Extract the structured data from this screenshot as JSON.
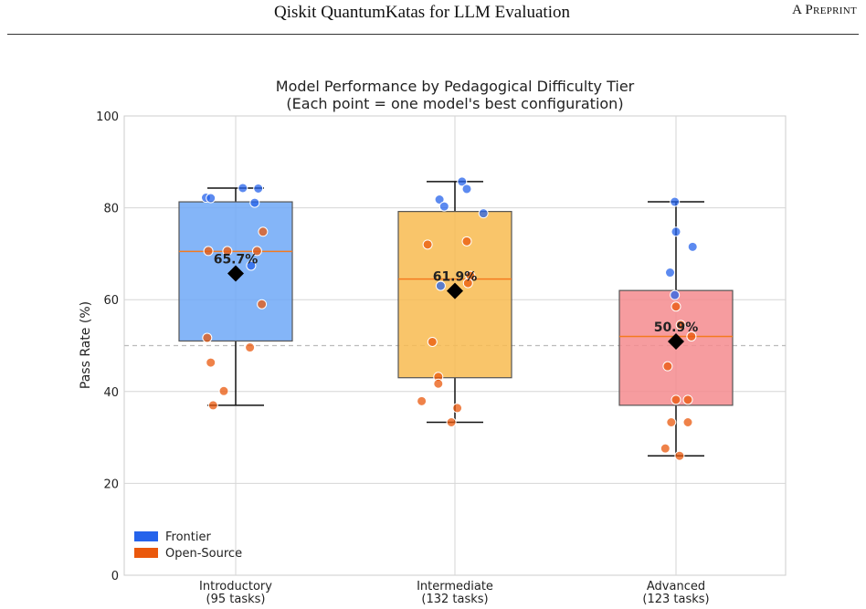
{
  "header": {
    "title": "Qiskit QuantumKatas for LLM Evaluation",
    "tag": "A Preprint"
  },
  "chart_data": {
    "type": "box",
    "title": "Model Performance by Pedagogical Difficulty Tier",
    "subtitle": "(Each point = one model's best configuration)",
    "xlabel": "",
    "ylabel": "Pass Rate (%)",
    "ylim": [
      0,
      100
    ],
    "yticks": [
      0,
      20,
      40,
      60,
      80,
      100
    ],
    "grid": true,
    "reference_line": 50,
    "legend_position": "bottom-left",
    "legend": [
      {
        "label": "Frontier",
        "color": "#2563eb"
      },
      {
        "label": "Open-Source",
        "color": "#ea580c"
      }
    ],
    "groups": [
      {
        "label": "Introductory",
        "sublabel": "(95 tasks)",
        "color": "#6fa8f7",
        "q1": 51,
        "median": 70.5,
        "q3": 81.3,
        "whisker_low": 37,
        "whisker_high": 84.3,
        "mean": 65.7,
        "mean_label": "65.7%",
        "points": [
          {
            "x": -0.25,
            "y": 82.2,
            "group": "Frontier"
          },
          {
            "x": -0.21,
            "y": 82.1,
            "group": "Frontier"
          },
          {
            "x": 0.06,
            "y": 84.3,
            "group": "Frontier"
          },
          {
            "x": 0.19,
            "y": 84.2,
            "group": "Frontier"
          },
          {
            "x": 0.16,
            "y": 81.1,
            "group": "Frontier"
          },
          {
            "x": 0.13,
            "y": 67.4,
            "group": "Frontier"
          },
          {
            "x": -0.23,
            "y": 70.6,
            "group": "Open-Source"
          },
          {
            "x": -0.07,
            "y": 70.6,
            "group": "Open-Source"
          },
          {
            "x": 0.18,
            "y": 70.6,
            "group": "Open-Source"
          },
          {
            "x": 0.23,
            "y": 74.8,
            "group": "Open-Source"
          },
          {
            "x": 0.22,
            "y": 59.0,
            "group": "Open-Source"
          },
          {
            "x": -0.24,
            "y": 51.7,
            "group": "Open-Source"
          },
          {
            "x": 0.12,
            "y": 49.6,
            "group": "Open-Source"
          },
          {
            "x": -0.21,
            "y": 46.3,
            "group": "Open-Source"
          },
          {
            "x": -0.1,
            "y": 40.1,
            "group": "Open-Source"
          },
          {
            "x": -0.19,
            "y": 37.0,
            "group": "Open-Source"
          }
        ]
      },
      {
        "label": "Intermediate",
        "sublabel": "(132 tasks)",
        "color": "#f8bb50",
        "q1": 43,
        "median": 64.5,
        "q3": 79.2,
        "whisker_low": 33.3,
        "whisker_high": 85.7,
        "mean": 61.9,
        "mean_label": "61.9%",
        "points": [
          {
            "x": 0.06,
            "y": 85.7,
            "group": "Frontier"
          },
          {
            "x": 0.1,
            "y": 84.1,
            "group": "Frontier"
          },
          {
            "x": -0.13,
            "y": 81.8,
            "group": "Frontier"
          },
          {
            "x": -0.09,
            "y": 80.3,
            "group": "Frontier"
          },
          {
            "x": 0.24,
            "y": 78.8,
            "group": "Frontier"
          },
          {
            "x": -0.12,
            "y": 63.0,
            "group": "Frontier"
          },
          {
            "x": -0.23,
            "y": 72.0,
            "group": "Open-Source"
          },
          {
            "x": 0.1,
            "y": 72.7,
            "group": "Open-Source"
          },
          {
            "x": 0.13,
            "y": 65.2,
            "group": "Open-Source"
          },
          {
            "x": 0.11,
            "y": 63.6,
            "group": "Open-Source"
          },
          {
            "x": -0.19,
            "y": 50.8,
            "group": "Open-Source"
          },
          {
            "x": -0.14,
            "y": 43.2,
            "group": "Open-Source"
          },
          {
            "x": -0.14,
            "y": 41.7,
            "group": "Open-Source"
          },
          {
            "x": -0.28,
            "y": 37.9,
            "group": "Open-Source"
          },
          {
            "x": 0.02,
            "y": 36.4,
            "group": "Open-Source"
          },
          {
            "x": -0.03,
            "y": 33.3,
            "group": "Open-Source"
          }
        ]
      },
      {
        "label": "Advanced",
        "sublabel": "(123 tasks)",
        "color": "#f58b8e",
        "q1": 37,
        "median": 52,
        "q3": 62,
        "whisker_low": 26,
        "whisker_high": 81.3,
        "mean": 50.9,
        "mean_label": "50.9%",
        "points": [
          {
            "x": -0.01,
            "y": 81.3,
            "group": "Frontier"
          },
          {
            "x": 0.0,
            "y": 74.8,
            "group": "Frontier"
          },
          {
            "x": 0.14,
            "y": 71.5,
            "group": "Frontier"
          },
          {
            "x": -0.05,
            "y": 65.9,
            "group": "Frontier"
          },
          {
            "x": -0.01,
            "y": 61.0,
            "group": "Frontier"
          },
          {
            "x": 0.0,
            "y": 58.5,
            "group": "Open-Source"
          },
          {
            "x": 0.04,
            "y": 54.5,
            "group": "Open-Source"
          },
          {
            "x": 0.13,
            "y": 52.0,
            "group": "Open-Source"
          },
          {
            "x": -0.07,
            "y": 45.5,
            "group": "Open-Source"
          },
          {
            "x": 0.0,
            "y": 38.2,
            "group": "Open-Source"
          },
          {
            "x": 0.1,
            "y": 38.2,
            "group": "Open-Source"
          },
          {
            "x": -0.04,
            "y": 33.3,
            "group": "Open-Source"
          },
          {
            "x": 0.1,
            "y": 33.3,
            "group": "Open-Source"
          },
          {
            "x": -0.09,
            "y": 27.6,
            "group": "Open-Source"
          },
          {
            "x": 0.03,
            "y": 26.0,
            "group": "Open-Source"
          }
        ]
      }
    ]
  }
}
